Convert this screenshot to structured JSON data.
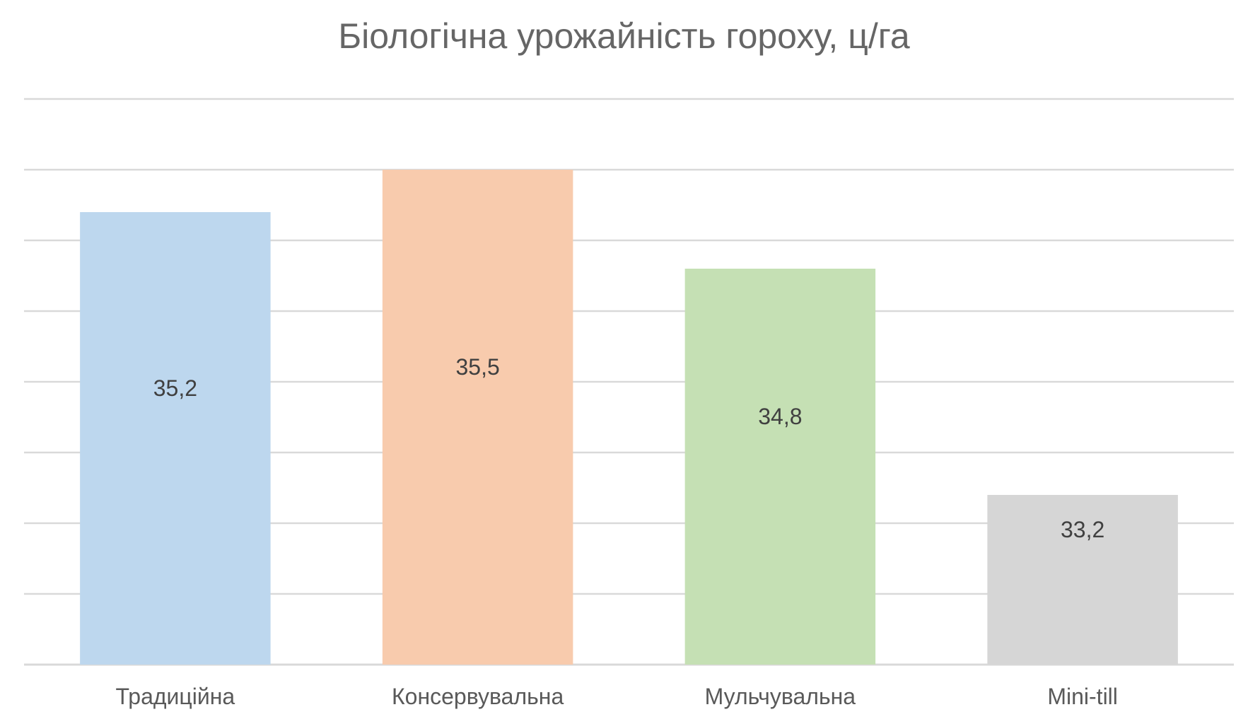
{
  "chart_data": {
    "type": "bar",
    "title": "Біологічна урожайність гороху, ц/га",
    "categories": [
      "Традиційна",
      "Консервувальна",
      "Мульчувальна",
      "Mini-till"
    ],
    "values": [
      35.2,
      35.5,
      34.8,
      33.2
    ],
    "value_labels": [
      "35,2",
      "35,5",
      "34,8",
      "33,2"
    ],
    "colors": [
      "#BDD7EE",
      "#F8CBAD",
      "#C5E0B4",
      "#D6D6D6"
    ],
    "ylim": [
      32.0,
      36.0
    ],
    "grid": true,
    "legend": "none",
    "xlabel": "",
    "ylabel": ""
  }
}
